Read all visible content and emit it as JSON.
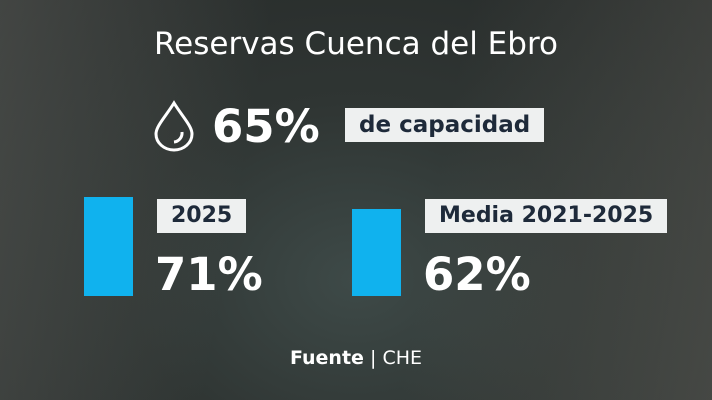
{
  "title": "Reservas Cuenca del Ebro",
  "headline": {
    "value": 65,
    "label": "65%",
    "caption": "de capacidad"
  },
  "bars": [
    {
      "name": "2025",
      "value": 71,
      "label": "71%",
      "color": "#10b2ee"
    },
    {
      "name": "Media 2021-2025",
      "value": 62,
      "label": "62%",
      "color": "#10b2ee"
    }
  ],
  "source": {
    "label": "Fuente",
    "text": "CHE"
  }
}
